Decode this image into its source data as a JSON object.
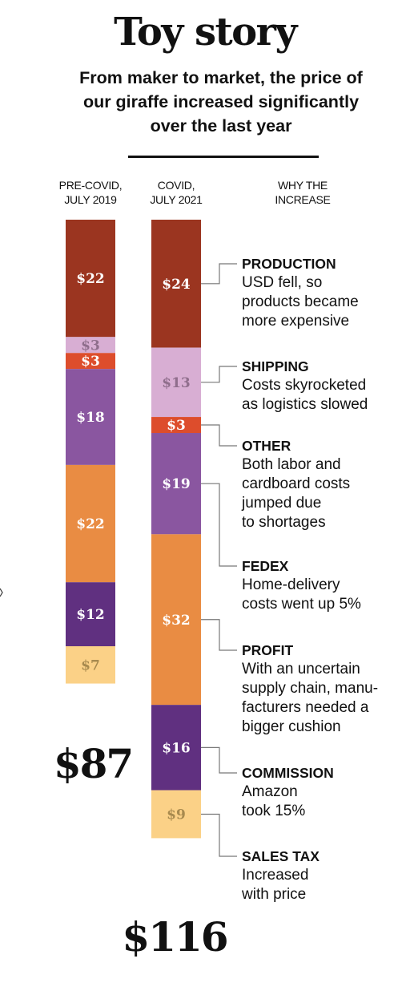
{
  "header": {
    "title": "Toy story",
    "subtitle": "From maker to market, the price of our giraffe increased significantly over the last year"
  },
  "columns": {
    "pre_line1": "PRE-COVID,",
    "pre_line2": "JULY 2019",
    "covid_line1": "COVID,",
    "covid_line2": "JULY 2021",
    "why_line1": "WHY THE",
    "why_line2": "INCREASE"
  },
  "annotations": [
    {
      "title": "PRODUCTION",
      "text": "USD fell, so\nproducts became\nmore expensive"
    },
    {
      "title": "SHIPPING",
      "text": "Costs skyrocketed\nas logistics slowed"
    },
    {
      "title": "OTHER",
      "text": "Both labor and\ncardboard costs\njumped due\nto shortages"
    },
    {
      "title": "FEDEX",
      "text": "Home-delivery\ncosts went up 5%"
    },
    {
      "title": "PROFIT",
      "text": "With an uncertain\nsupply chain, manu-\nfacturers needed a\nbigger cushion"
    },
    {
      "title": "COMMISSION",
      "text": "Amazon\ntook 15%"
    },
    {
      "title": "SALES TAX",
      "text": "Increased\nwith price"
    }
  ],
  "chart_data": {
    "type": "bar",
    "stacked": true,
    "categories": [
      "PRE-COVID, JULY 2019",
      "COVID, JULY 2021"
    ],
    "series": [
      {
        "name": "PRODUCTION",
        "color": "#9b3520",
        "values": [
          22,
          24
        ],
        "labels": [
          "$22",
          "$24"
        ]
      },
      {
        "name": "SHIPPING",
        "color": "#d8aed3",
        "values": [
          3,
          13
        ],
        "labels": [
          "$3",
          "$13"
        ]
      },
      {
        "name": "OTHER",
        "color": "#dd4d2c",
        "values": [
          3,
          3
        ],
        "labels": [
          "$3",
          "$3"
        ]
      },
      {
        "name": "FEDEX",
        "color": "#8a56a0",
        "values": [
          18,
          19
        ],
        "labels": [
          "$18",
          "$19"
        ]
      },
      {
        "name": "PROFIT",
        "color": "#e98c43",
        "values": [
          22,
          32
        ],
        "labels": [
          "$22",
          "$32"
        ]
      },
      {
        "name": "COMMISSION",
        "color": "#603080",
        "values": [
          12,
          16
        ],
        "labels": [
          "$12",
          "$16"
        ]
      },
      {
        "name": "SALES TAX",
        "color": "#fbd187",
        "values": [
          7,
          9
        ],
        "labels": [
          "$7",
          "$9"
        ]
      }
    ],
    "totals": [
      "$87",
      "$116"
    ]
  }
}
